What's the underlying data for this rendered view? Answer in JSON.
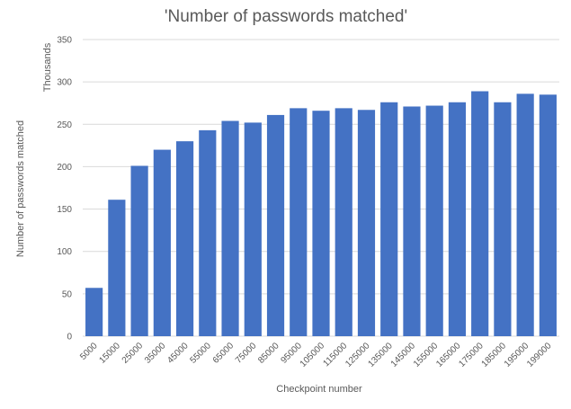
{
  "chart_data": {
    "type": "bar",
    "title": "'Number of passwords matched'",
    "xlabel": "Checkpoint number",
    "ylabel": "Number of passwords matched",
    "y_unit_label": "Thousands",
    "ylim": [
      0,
      350
    ],
    "yticks": [
      0,
      50,
      100,
      150,
      200,
      250,
      300,
      350
    ],
    "grid": true,
    "legend": "none",
    "bar_color": "#4472c4",
    "categories": [
      "5000",
      "15000",
      "25000",
      "35000",
      "45000",
      "55000",
      "65000",
      "75000",
      "85000",
      "95000",
      "105000",
      "115000",
      "125000",
      "135000",
      "145000",
      "155000",
      "165000",
      "175000",
      "185000",
      "195000",
      "199000"
    ],
    "values": [
      57,
      161,
      201,
      220,
      230,
      243,
      254,
      252,
      261,
      269,
      266,
      269,
      267,
      276,
      271,
      272,
      276,
      289,
      276,
      286,
      285
    ]
  }
}
